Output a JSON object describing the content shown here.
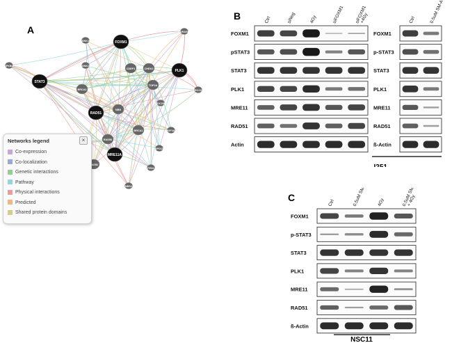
{
  "panels": {
    "a": "A",
    "b": "B",
    "c": "C"
  },
  "network": {
    "nodes": [
      {
        "id": "STAT3",
        "label": "STAT3",
        "big": true
      },
      {
        "id": "NFKBIZ",
        "label": "NFKBIZ",
        "big": false
      },
      {
        "id": "CSNK1D",
        "label": "CSNK1D",
        "big": false
      },
      {
        "id": "CSNK1E",
        "label": "CSNK1E",
        "big": false
      },
      {
        "id": "FOXM1",
        "label": "FOXM1",
        "big": true
      },
      {
        "id": "GORASP1",
        "label": "GORASP1",
        "big": false
      },
      {
        "id": "CDEP1",
        "label": "CDEP1",
        "big": false
      },
      {
        "id": "CHEK2",
        "label": "CHEK2",
        "big": false
      },
      {
        "id": "PLK1",
        "label": "PLK1",
        "big": true
      },
      {
        "id": "ERCC6L",
        "label": "ERCC6L",
        "big": false
      },
      {
        "id": "NBN",
        "label": "NBN",
        "big": false
      },
      {
        "id": "BRCA2",
        "label": "BRCA2",
        "big": false
      },
      {
        "id": "RAD51",
        "label": "RAD51",
        "big": true
      },
      {
        "id": "TOP2A",
        "label": "TOP2A",
        "big": false
      },
      {
        "id": "CDC25C",
        "label": "CDC25C",
        "big": false
      },
      {
        "id": "BRCA1",
        "label": "BRCA1",
        "big": false
      },
      {
        "id": "KIF4A",
        "label": "KIF4A",
        "big": false
      },
      {
        "id": "DMC1",
        "label": "DMC1",
        "big": false
      },
      {
        "id": "RAD50",
        "label": "RAD50",
        "big": false
      },
      {
        "id": "MRE11A",
        "label": "MRE11A",
        "big": true
      },
      {
        "id": "SPO11",
        "label": "SPO11",
        "big": false
      },
      {
        "id": "RAD52",
        "label": "RAD52",
        "big": false
      },
      {
        "id": "FEN1",
        "label": "FEN1",
        "big": false
      },
      {
        "id": "NBS1",
        "label": "NBS1",
        "big": false
      }
    ],
    "legend": {
      "title": "Networks legend",
      "close": "×",
      "items": [
        {
          "label": "Co-expression",
          "color": "#c8a6d6"
        },
        {
          "label": "Co-localization",
          "color": "#9aa8dc"
        },
        {
          "label": "Genetic interactions",
          "color": "#8fd18f"
        },
        {
          "label": "Pathway",
          "color": "#8fd8e0"
        },
        {
          "label": "Physical interactions",
          "color": "#ee9a9a"
        },
        {
          "label": "Predicted",
          "color": "#f3b77a"
        },
        {
          "label": "Shared protein domains",
          "color": "#d7cd86"
        }
      ]
    }
  },
  "blot_b_left": {
    "columns": [
      "Ctrl",
      "siNeg",
      "4Gy",
      "siFOXM1",
      "siFOXM1\n+4Gy"
    ],
    "rows": [
      {
        "label": "FOXM1",
        "bands": [
          0.75,
          0.7,
          0.95,
          0.1,
          0.15
        ]
      },
      {
        "label": "pSTAT3",
        "bands": [
          0.6,
          0.65,
          0.95,
          0.35,
          0.6
        ]
      },
      {
        "label": "STAT3",
        "bands": [
          0.8,
          0.8,
          0.8,
          0.8,
          0.8
        ]
      },
      {
        "label": "PLK1",
        "bands": [
          0.7,
          0.7,
          0.85,
          0.4,
          0.45
        ]
      },
      {
        "label": "MRE11",
        "bands": [
          0.55,
          0.7,
          0.8,
          0.6,
          0.7
        ]
      },
      {
        "label": "RAD51",
        "bands": [
          0.55,
          0.45,
          0.8,
          0.55,
          0.7
        ]
      },
      {
        "label": "Actin",
        "bands": [
          0.85,
          0.85,
          0.85,
          0.85,
          0.85
        ]
      }
    ]
  },
  "blot_b_right": {
    "columns": [
      "Ctrl",
      "0.5uM SM-A"
    ],
    "rows": [
      {
        "label": "FOXM1",
        "bands": [
          0.75,
          0.4
        ]
      },
      {
        "label": "p-STAT3",
        "bands": [
          0.65,
          0.45
        ]
      },
      {
        "label": "STAT3",
        "bands": [
          0.8,
          0.8
        ]
      },
      {
        "label": "PLK1",
        "bands": [
          0.8,
          0.4
        ]
      },
      {
        "label": "MRE11",
        "bands": [
          0.6,
          0.2
        ]
      },
      {
        "label": "RAD51",
        "bands": [
          0.55,
          0.2
        ]
      },
      {
        "label": "ß-Actin",
        "bands": [
          0.85,
          0.85
        ]
      }
    ],
    "cell_line": "U251"
  },
  "blot_c": {
    "columns": [
      "Ctrl",
      "0.5uM SM-A",
      "4Gy",
      "0.5uM SM-A\n+ 4Gy"
    ],
    "rows": [
      {
        "label": "FOXM1",
        "bands": [
          0.7,
          0.4,
          0.9,
          0.6
        ]
      },
      {
        "label": "p-STAT3",
        "bands": [
          0.2,
          0.3,
          0.85,
          0.5
        ]
      },
      {
        "label": "STAT3",
        "bands": [
          0.8,
          0.8,
          0.8,
          0.8
        ]
      },
      {
        "label": "PLK1",
        "bands": [
          0.7,
          0.35,
          0.8,
          0.35
        ]
      },
      {
        "label": "MRE11",
        "bands": [
          0.5,
          0.15,
          0.9,
          0.25
        ]
      },
      {
        "label": "RAD51",
        "bands": [
          0.55,
          0.2,
          0.5,
          0.6
        ]
      },
      {
        "label": "ß-Actin",
        "bands": [
          0.85,
          0.85,
          0.85,
          0.85
        ]
      }
    ],
    "cell_line": "NSC11"
  }
}
